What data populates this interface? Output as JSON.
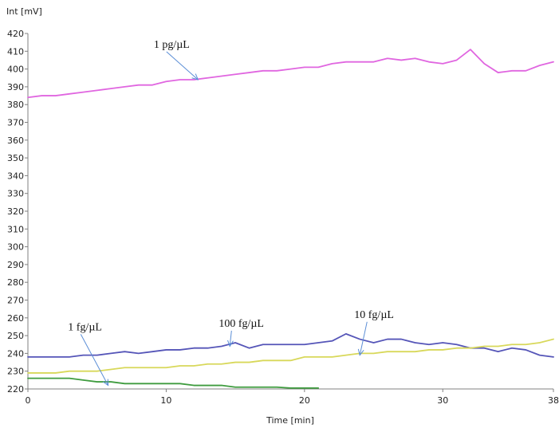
{
  "chart_data": {
    "type": "line",
    "title": "",
    "xlabel": "Time [min]",
    "ylabel": "Int [mV]",
    "xlim": [
      0,
      38
    ],
    "ylim": [
      220,
      420
    ],
    "x_ticks": [
      0,
      10,
      20,
      30,
      38
    ],
    "y_ticks": [
      220,
      230,
      240,
      250,
      260,
      270,
      280,
      290,
      300,
      310,
      320,
      330,
      340,
      350,
      360,
      370,
      380,
      390,
      400,
      410,
      420
    ],
    "grid": false,
    "series": [
      {
        "name": "1 pg/µL",
        "color": "#e066e0",
        "x": [
          0,
          1,
          2,
          3,
          4,
          5,
          6,
          7,
          8,
          9,
          10,
          11,
          12,
          13,
          14,
          15,
          16,
          17,
          18,
          19,
          20,
          21,
          22,
          23,
          24,
          25,
          26,
          27,
          28,
          29,
          30,
          31,
          32,
          33,
          34,
          35,
          36,
          37,
          38
        ],
        "values": [
          384,
          385,
          385,
          386,
          387,
          388,
          389,
          390,
          391,
          391,
          393,
          394,
          394,
          395,
          396,
          397,
          398,
          399,
          399,
          400,
          401,
          401,
          403,
          404,
          404,
          404,
          406,
          405,
          406,
          404,
          403,
          405,
          411,
          403,
          398,
          399,
          399,
          402,
          404
        ]
      },
      {
        "name": "100 fg/µL",
        "color": "#5555b8",
        "x": [
          0,
          1,
          2,
          3,
          4,
          5,
          6,
          7,
          8,
          9,
          10,
          11,
          12,
          13,
          14,
          15,
          16,
          17,
          18,
          19,
          20,
          21,
          22,
          23,
          24,
          25,
          26,
          27,
          28,
          29,
          30,
          31,
          32,
          33,
          34,
          35,
          36,
          37,
          38
        ],
        "values": [
          238,
          238,
          238,
          238,
          239,
          239,
          240,
          241,
          240,
          241,
          242,
          242,
          243,
          243,
          244,
          246,
          243,
          245,
          245,
          245,
          245,
          246,
          247,
          251,
          248,
          246,
          248,
          248,
          246,
          245,
          246,
          245,
          243,
          243,
          241,
          243,
          242,
          239,
          238
        ]
      },
      {
        "name": "10 fg/µL",
        "color": "#d8d85a",
        "x": [
          0,
          1,
          2,
          3,
          4,
          5,
          6,
          7,
          8,
          9,
          10,
          11,
          12,
          13,
          14,
          15,
          16,
          17,
          18,
          19,
          20,
          21,
          22,
          23,
          24,
          25,
          26,
          27,
          28,
          29,
          30,
          31,
          32,
          33,
          34,
          35,
          36,
          37,
          38
        ],
        "values": [
          229,
          229,
          229,
          230,
          230,
          230,
          231,
          232,
          232,
          232,
          232,
          233,
          233,
          234,
          234,
          235,
          235,
          236,
          236,
          236,
          238,
          238,
          238,
          239,
          240,
          240,
          241,
          241,
          241,
          242,
          242,
          243,
          243,
          244,
          244,
          245,
          245,
          246,
          248
        ]
      },
      {
        "name": "1 fg/µL",
        "color": "#3f9c3f",
        "x": [
          0,
          1,
          2,
          3,
          4,
          5,
          6,
          7,
          8,
          9,
          10,
          11,
          12,
          13,
          14,
          15,
          16,
          17,
          18,
          19,
          20,
          21
        ],
        "values": [
          226,
          226,
          226,
          226,
          225,
          224,
          224,
          223,
          223,
          223,
          223,
          223,
          222,
          222,
          222,
          221,
          221,
          221,
          221,
          220.5,
          220.5,
          220.5
        ]
      }
    ],
    "annotations": [
      {
        "text": "1 pg/µL",
        "text_x": 9.1,
        "text_y": 412,
        "arrow_to_x": 12.3,
        "arrow_to_y": 394
      },
      {
        "text": "100 fg/µL",
        "text_x": 13.8,
        "text_y": 255,
        "arrow_to_x": 14.6,
        "arrow_to_y": 244
      },
      {
        "text": "10 fg/µL",
        "text_x": 23.6,
        "text_y": 260,
        "arrow_to_x": 24.0,
        "arrow_to_y": 239
      },
      {
        "text": "1 fg/µL",
        "text_x": 2.9,
        "text_y": 253,
        "arrow_to_x": 5.8,
        "arrow_to_y": 222
      }
    ]
  }
}
